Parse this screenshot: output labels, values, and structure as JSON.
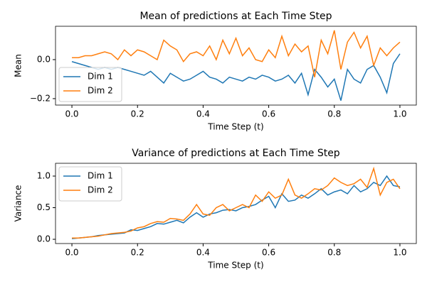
{
  "chart_data": [
    {
      "type": "line",
      "title": "Mean of predictions at Each Time Step",
      "xlabel": "Time Step (t)",
      "ylabel": "Mean",
      "x": [
        0,
        0.02,
        0.04,
        0.06,
        0.08,
        0.1,
        0.12,
        0.14,
        0.16,
        0.18,
        0.2,
        0.22,
        0.24,
        0.26,
        0.28,
        0.3,
        0.32,
        0.34,
        0.36,
        0.38,
        0.4,
        0.42,
        0.44,
        0.46,
        0.48,
        0.5,
        0.52,
        0.54,
        0.56,
        0.58,
        0.6,
        0.62,
        0.64,
        0.66,
        0.68,
        0.7,
        0.72,
        0.74,
        0.76,
        0.78,
        0.8,
        0.82,
        0.84,
        0.86,
        0.88,
        0.9,
        0.92,
        0.94,
        0.96,
        0.98,
        1
      ],
      "series": [
        {
          "name": "Dim 1",
          "color": "#1f77b4",
          "values": [
            -0.01,
            -0.02,
            -0.03,
            -0.04,
            -0.05,
            -0.04,
            -0.05,
            -0.04,
            -0.05,
            -0.06,
            -0.07,
            -0.08,
            -0.06,
            -0.09,
            -0.12,
            -0.07,
            -0.09,
            -0.11,
            -0.1,
            -0.08,
            -0.06,
            -0.09,
            -0.1,
            -0.12,
            -0.09,
            -0.1,
            -0.11,
            -0.09,
            -0.1,
            -0.08,
            -0.09,
            -0.11,
            -0.1,
            -0.08,
            -0.12,
            -0.07,
            -0.18,
            -0.05,
            -0.09,
            -0.14,
            -0.1,
            -0.21,
            -0.05,
            -0.1,
            -0.12,
            -0.05,
            -0.03,
            -0.09,
            -0.17,
            -0.02,
            0.03
          ]
        },
        {
          "name": "Dim 2",
          "color": "#ff7f0e",
          "values": [
            0.01,
            0.01,
            0.02,
            0.02,
            0.03,
            0.04,
            0.03,
            0.0,
            0.05,
            0.02,
            0.05,
            0.04,
            0.02,
            0.0,
            0.1,
            0.07,
            0.05,
            -0.01,
            0.03,
            0.04,
            0.02,
            0.07,
            0.0,
            0.1,
            0.03,
            0.11,
            0.02,
            0.06,
            0.0,
            -0.01,
            0.05,
            0.01,
            0.12,
            0.02,
            0.08,
            0.04,
            0.07,
            -0.09,
            0.1,
            0.03,
            0.15,
            -0.05,
            0.09,
            0.14,
            0.06,
            0.12,
            -0.03,
            0.06,
            0.02,
            0.06,
            0.09
          ]
        }
      ],
      "xlim": [
        -0.05,
        1.05
      ],
      "ylim": [
        -0.233,
        0.171
      ],
      "xticks": [
        {
          "value": 0,
          "label": "0.0"
        },
        {
          "value": 0.2,
          "label": "0.2"
        },
        {
          "value": 0.4,
          "label": "0.4"
        },
        {
          "value": 0.6,
          "label": "0.6"
        },
        {
          "value": 0.8,
          "label": "0.8"
        },
        {
          "value": 1,
          "label": "1.0"
        }
      ],
      "yticks": [
        {
          "value": -0.2,
          "label": "−0.2"
        },
        {
          "value": 0,
          "label": "0.0"
        }
      ],
      "legend": "lower left"
    },
    {
      "type": "line",
      "title": "Variance of predictions at Each Time Step",
      "xlabel": "Time Step (t)",
      "ylabel": "Variance",
      "x": [
        0,
        0.02,
        0.04,
        0.06,
        0.08,
        0.1,
        0.12,
        0.14,
        0.16,
        0.18,
        0.2,
        0.22,
        0.24,
        0.26,
        0.28,
        0.3,
        0.32,
        0.34,
        0.36,
        0.38,
        0.4,
        0.42,
        0.44,
        0.46,
        0.48,
        0.5,
        0.52,
        0.54,
        0.56,
        0.58,
        0.6,
        0.62,
        0.64,
        0.66,
        0.68,
        0.7,
        0.72,
        0.74,
        0.76,
        0.78,
        0.8,
        0.82,
        0.84,
        0.86,
        0.88,
        0.9,
        0.92,
        0.94,
        0.96,
        0.98,
        1
      ],
      "series": [
        {
          "name": "Dim 1",
          "color": "#1f77b4",
          "values": [
            0.01,
            0.02,
            0.03,
            0.04,
            0.06,
            0.07,
            0.08,
            0.09,
            0.1,
            0.15,
            0.14,
            0.17,
            0.2,
            0.25,
            0.24,
            0.27,
            0.3,
            0.26,
            0.35,
            0.42,
            0.35,
            0.4,
            0.42,
            0.46,
            0.47,
            0.45,
            0.5,
            0.52,
            0.55,
            0.62,
            0.68,
            0.5,
            0.72,
            0.6,
            0.62,
            0.7,
            0.65,
            0.72,
            0.8,
            0.7,
            0.75,
            0.78,
            0.72,
            0.85,
            0.75,
            0.8,
            0.9,
            0.85,
            1.0,
            0.85,
            0.83
          ]
        },
        {
          "name": "Dim 2",
          "color": "#ff7f0e",
          "values": [
            0.02,
            0.02,
            0.03,
            0.04,
            0.05,
            0.07,
            0.09,
            0.1,
            0.11,
            0.13,
            0.18,
            0.2,
            0.25,
            0.28,
            0.27,
            0.33,
            0.32,
            0.3,
            0.4,
            0.55,
            0.4,
            0.38,
            0.5,
            0.55,
            0.45,
            0.5,
            0.55,
            0.5,
            0.7,
            0.6,
            0.75,
            0.65,
            0.7,
            0.95,
            0.7,
            0.65,
            0.72,
            0.8,
            0.78,
            0.85,
            0.97,
            0.9,
            0.85,
            0.88,
            0.95,
            0.82,
            1.12,
            0.7,
            0.9,
            0.95,
            0.8
          ]
        }
      ],
      "xlim": [
        -0.05,
        1.05
      ],
      "ylim": [
        -0.067,
        1.202
      ],
      "xticks": [
        {
          "value": 0,
          "label": "0.0"
        },
        {
          "value": 0.2,
          "label": "0.2"
        },
        {
          "value": 0.4,
          "label": "0.4"
        },
        {
          "value": 0.6,
          "label": "0.6"
        },
        {
          "value": 0.8,
          "label": "0.8"
        },
        {
          "value": 1,
          "label": "1.0"
        }
      ],
      "yticks": [
        {
          "value": 0,
          "label": "0.0"
        },
        {
          "value": 0.5,
          "label": "0.5"
        },
        {
          "value": 1,
          "label": "1.0"
        }
      ],
      "legend": "upper left"
    }
  ]
}
